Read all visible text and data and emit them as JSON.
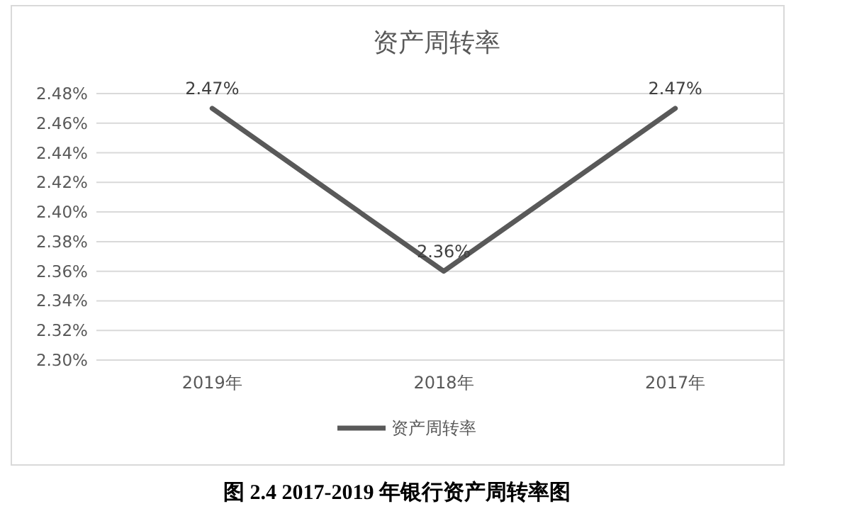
{
  "chart_data": {
    "type": "line",
    "title": "资产周转率",
    "categories": [
      "2019年",
      "2018年",
      "2017年"
    ],
    "series": [
      {
        "name": "资产周转率",
        "color": "#595959",
        "values": [
          2.47,
          2.36,
          2.47
        ],
        "value_labels": [
          "2.47%",
          "2.36%",
          "2.47%"
        ]
      }
    ],
    "ylim": [
      2.3,
      2.48
    ],
    "yticks": [
      {
        "value": 2.3,
        "label": "2.30%"
      },
      {
        "value": 2.32,
        "label": "2.32%"
      },
      {
        "value": 2.34,
        "label": "2.34%"
      },
      {
        "value": 2.36,
        "label": "2.36%"
      },
      {
        "value": 2.38,
        "label": "2.38%"
      },
      {
        "value": 2.4,
        "label": "2.40%"
      },
      {
        "value": 2.42,
        "label": "2.42%"
      },
      {
        "value": 2.44,
        "label": "2.44%"
      },
      {
        "value": 2.46,
        "label": "2.46%"
      },
      {
        "value": 2.48,
        "label": "2.48%"
      }
    ],
    "grid": "y",
    "legend": "bottom",
    "marker": "none",
    "line_style": "solid",
    "annotations": [
      "图 2.4 2017-2019 年银行资产周转率图"
    ]
  }
}
